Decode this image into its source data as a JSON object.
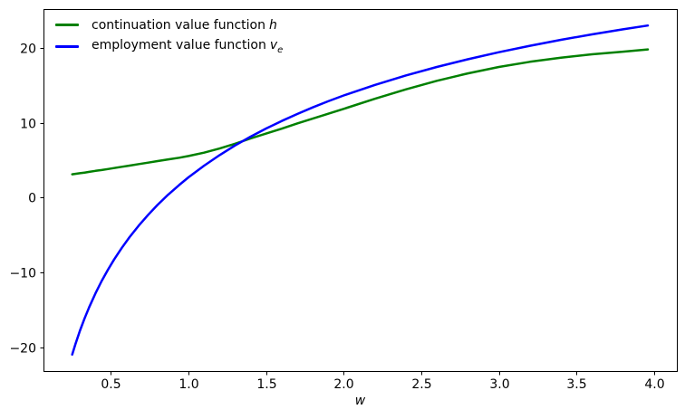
{
  "figure": {
    "background": "#ffffff",
    "spine_color": "#000000",
    "text_color": "#000000"
  },
  "legend": {
    "position": "upper left",
    "frame": false,
    "items": [
      {
        "text": "continuation value function",
        "symbol": "h",
        "symbol_sub": "",
        "color": "#008000"
      },
      {
        "text": "employment value function",
        "symbol": "v",
        "symbol_sub": "e",
        "color": "#0000ff"
      }
    ]
  },
  "chart_data": {
    "type": "line",
    "title": "",
    "xlabel": "w",
    "ylabel": "",
    "grid": false,
    "legend_position": "upper left",
    "xlim": [
      0.065,
      4.147
    ],
    "ylim": [
      -23.2,
      25.2
    ],
    "x_ticks": [
      0.5,
      1.0,
      1.5,
      2.0,
      2.5,
      3.0,
      3.5,
      4.0
    ],
    "x_tick_labels": [
      "0.5",
      "1.0",
      "1.5",
      "2.0",
      "2.5",
      "3.0",
      "3.5",
      "4.0"
    ],
    "y_ticks": [
      -20,
      -10,
      0,
      10,
      20
    ],
    "y_tick_labels": [
      "−20",
      "−10",
      "0",
      "10",
      "20"
    ],
    "x": [
      0.25,
      0.27,
      0.3,
      0.33,
      0.36,
      0.4,
      0.44,
      0.48,
      0.52,
      0.57,
      0.62,
      0.68,
      0.74,
      0.8,
      0.87,
      0.94,
      1.0,
      1.1,
      1.2,
      1.3,
      1.4,
      1.5,
      1.6,
      1.7,
      1.8,
      1.9,
      2.0,
      2.2,
      2.4,
      2.6,
      2.8,
      3.0,
      3.2,
      3.4,
      3.6,
      3.8,
      3.96
    ],
    "series": [
      {
        "name": "continuation value function h",
        "id": "continuation-value",
        "color": "#008000",
        "line_width": 2.5,
        "values": [
          3.1,
          3.16,
          3.25,
          3.34,
          3.43,
          3.56,
          3.68,
          3.81,
          3.94,
          4.11,
          4.27,
          4.47,
          4.67,
          4.87,
          5.1,
          5.32,
          5.55,
          6.0,
          6.55,
          7.2,
          7.9,
          8.55,
          9.2,
          9.9,
          10.55,
          11.2,
          11.85,
          13.2,
          14.45,
          15.6,
          16.6,
          17.45,
          18.15,
          18.7,
          19.15,
          19.5,
          19.8
        ]
      },
      {
        "name": "employment value function v_e",
        "id": "employment-value",
        "color": "#0000ff",
        "line_width": 2.5,
        "values": [
          -21.0,
          -19.65,
          -17.81,
          -16.15,
          -14.64,
          -12.81,
          -11.16,
          -9.66,
          -8.29,
          -6.72,
          -5.29,
          -3.73,
          -2.3,
          -0.99,
          0.41,
          1.68,
          2.71,
          4.26,
          5.67,
          6.96,
          8.14,
          9.23,
          10.23,
          11.17,
          12.05,
          12.87,
          13.64,
          15.05,
          16.32,
          17.46,
          18.49,
          19.43,
          20.29,
          21.08,
          21.81,
          22.49,
          23.0
        ]
      }
    ],
    "annotations": {
      "curves_intersect_at": {
        "w": 1.36,
        "value": 7.8
      }
    }
  }
}
